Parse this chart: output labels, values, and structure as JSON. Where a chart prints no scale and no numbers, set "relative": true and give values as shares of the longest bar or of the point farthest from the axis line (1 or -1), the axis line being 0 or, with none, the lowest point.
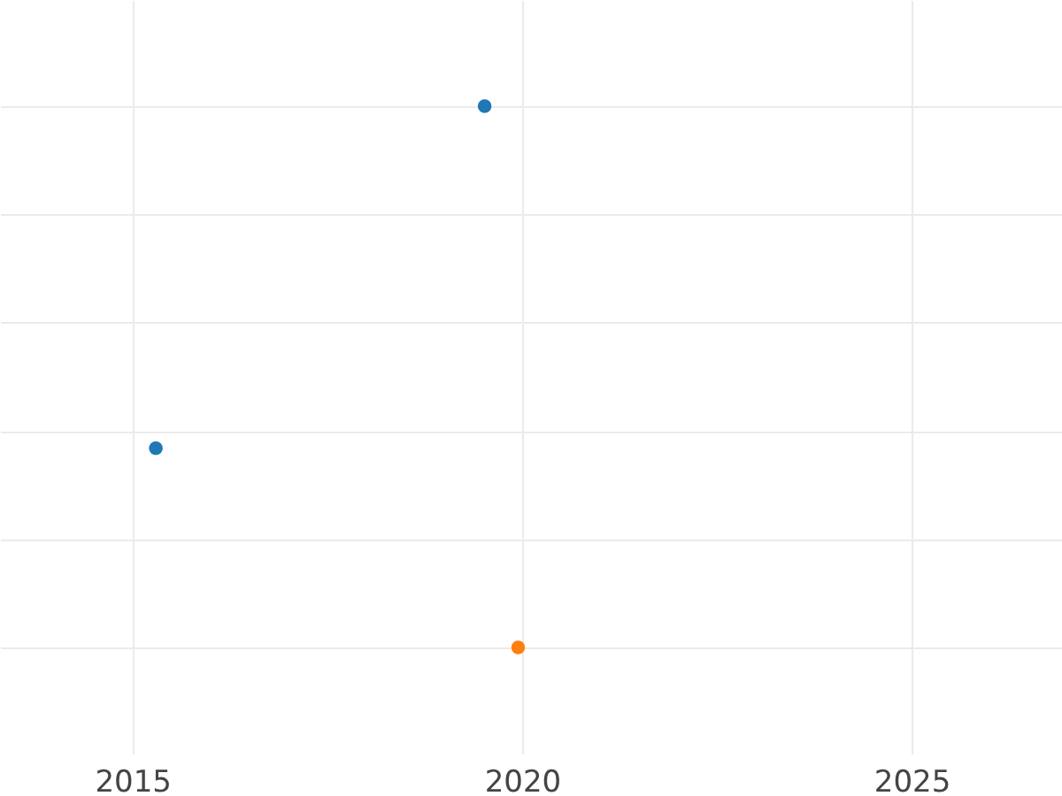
{
  "chart_data": {
    "type": "scatter",
    "relative": true,
    "grid": true,
    "marker": "circle",
    "legend": false,
    "tick_labels": "x",
    "xlim": [
      2013.3,
      2026.93
    ],
    "xticks": [
      2015,
      2020,
      2025
    ],
    "series": [
      {
        "color": "#1f77b4",
        "x": [
          2015.3,
          2019.52
        ],
        "values": [
          0.368,
          1
        ]
      },
      {
        "color": "#ff7f0e",
        "x": [
          2019.95
        ],
        "values": [
          0
        ]
      }
    ]
  }
}
